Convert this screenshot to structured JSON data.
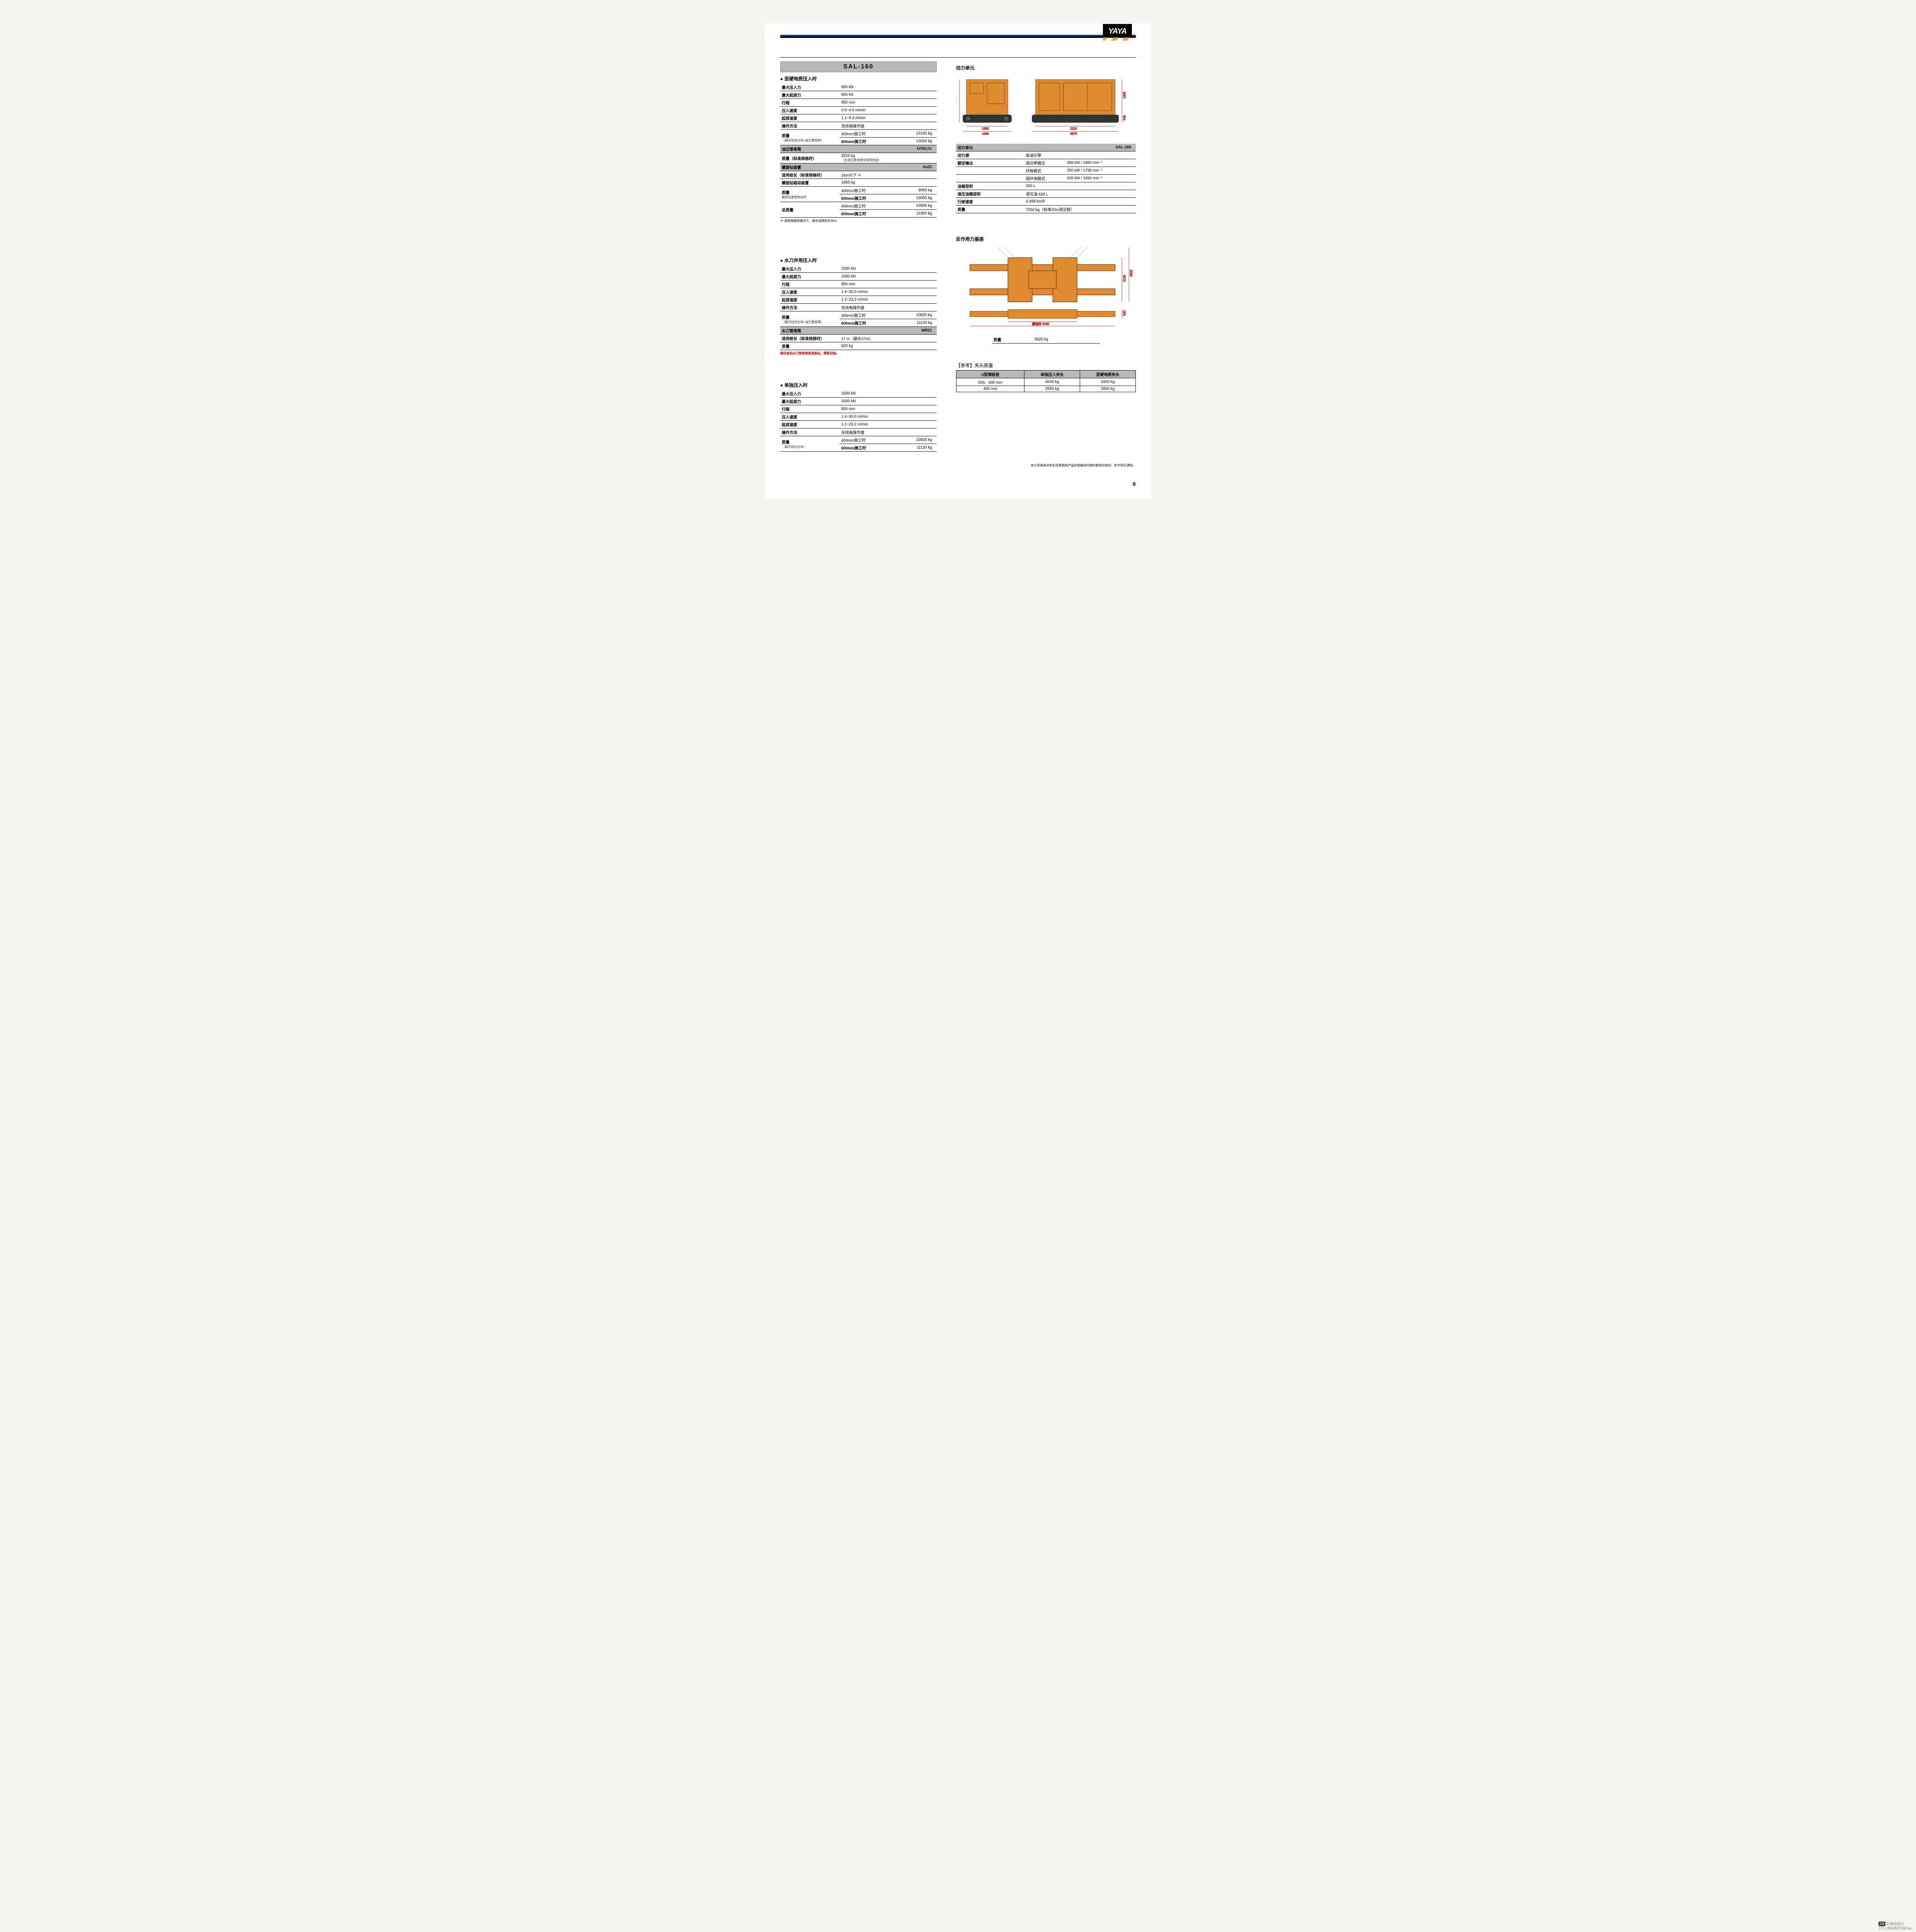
{
  "logo_text": "YAYA",
  "model": "SAL-160",
  "colors": {
    "machine_orange": "#e08a2e",
    "machine_dark": "#6b3f16",
    "dim_red": "#c02020",
    "gray_header": "#b8b8b8",
    "black": "#000000"
  },
  "sec1": {
    "title": "坚硬地质压入时",
    "rows": [
      [
        "最大压入力",
        "800 kN",
        ""
      ],
      [
        "最大起拔力",
        "900 kN",
        ""
      ],
      [
        "行程",
        "850 mm",
        ""
      ],
      [
        "压入速度",
        "0.5~4.5 m/min",
        ""
      ],
      [
        "起拔速度",
        "1.1~9.4 m/min",
        ""
      ],
      [
        "操作方法",
        "无线电操作盘",
        ""
      ]
    ],
    "mass_label": "质量",
    "mass_sub": "（静压桩机主体+油压管卷筒）",
    "mass_rows": [
      [
        "400mm施工时",
        "13160 kg"
      ],
      [
        "600mm施工时",
        "13660 kg"
      ]
    ],
    "gray1": [
      "油压管卷筒",
      "HTR17C"
    ],
    "std_label": "质量（标准规格时）",
    "std_val": "2810 kg",
    "std_sub": "（含液压管卷筒安装用支架）",
    "gray2": [
      "螺旋钻装置",
      "Au22"
    ],
    "auger_rows": [
      [
        "适用桩长（标准规格时）",
        "24m以下  ※",
        ""
      ],
      [
        "螺旋钻驱动装置",
        "1850 kg",
        ""
      ]
    ],
    "auger_mass_label": "质量",
    "auger_mass_sub": "螺旋钻套管和钻杆",
    "auger_mass_rows": [
      [
        "400mm施工时",
        "9050 kg"
      ],
      [
        "600mm施工时",
        "10050 kg"
      ]
    ],
    "total_label": "总质量",
    "total_rows": [
      [
        "400mm施工时",
        "10900 kg"
      ],
      [
        "600mm施工时",
        "11900 kg"
      ]
    ],
    "footnote": "※ 选购规格的情况下，最长适用桩长30m"
  },
  "sec2": {
    "title": "水刀并用压入时",
    "rows": [
      [
        "最大压入力",
        "1500 kN",
        ""
      ],
      [
        "最大起拔力",
        "1600 kN",
        ""
      ],
      [
        "行程",
        "850 mm",
        ""
      ],
      [
        "压入速度",
        "1.4~30.0 m/min",
        ""
      ],
      [
        "起拔速度",
        "1.1~23.2 m/min",
        ""
      ],
      [
        "操作方法",
        "无线电操作盘",
        ""
      ]
    ],
    "mass_label": "质量",
    "mass_sub": "（静压桩机主体+油压管卷筒）",
    "mass_rows": [
      [
        "400mm施工时",
        "10820 kg"
      ],
      [
        "600mm施工时",
        "11120 kg"
      ]
    ],
    "gray": [
      "水刀管卷筒",
      "WR21"
    ],
    "wj_rows": [
      [
        "适用桩长（标准规格时）",
        "17 m（最长27m）"
      ],
      [
        "质量",
        "820 kg"
      ]
    ],
    "footnote": "静压桩机水刀管卷筒是选购品，需要另购。"
  },
  "sec3": {
    "title": "单独压入时",
    "rows": [
      [
        "最大压入力",
        "1500 kN",
        ""
      ],
      [
        "最大起拔力",
        "1600 kN",
        ""
      ],
      [
        "行程",
        "850 mm",
        ""
      ],
      [
        "压入速度",
        "1.4~30.0 m/min",
        ""
      ],
      [
        "起拔速度",
        "1.1~23.2 m/min",
        ""
      ],
      [
        "操作方法",
        "无线电操作盘",
        ""
      ]
    ],
    "mass_label": "质量",
    "mass_sub": "（静压桩机主体）",
    "mass_rows": [
      [
        "400mm施工时",
        "10820 kg"
      ],
      [
        "600mm施工时",
        "11120 kg"
      ]
    ]
  },
  "power_unit": {
    "title": "动力单元",
    "dims": {
      "h_total": "2350",
      "h_body": "1805",
      "h_track": "545",
      "w_body": "1800",
      "w_total": "1960",
      "l_body": "2110",
      "l_total": "3975"
    },
    "table_header": [
      "动力单元",
      "SAL-160"
    ],
    "rows": [
      [
        "动力源",
        "",
        "柴油引擎"
      ],
      [
        "额定输出",
        "高功率模式",
        "258 kW / 1850 min⁻¹"
      ],
      [
        "",
        "环保模式",
        "250 kW / 1750 min⁻¹"
      ],
      [
        "",
        "超环保模式",
        "245 kW / 1650 min⁻¹"
      ],
      [
        "油箱容积",
        "",
        "650 L"
      ],
      [
        "液压油箱容积",
        "",
        "液压油 630 L"
      ],
      [
        "行驶速度",
        "",
        "0.468 km/h"
      ],
      [
        "质量",
        "",
        "7250 kg（标准20m液压管）"
      ]
    ]
  },
  "reaction_base": {
    "title": "反作用力基座",
    "dims": {
      "width_total": "6250",
      "width_trans": "搬运时 3440",
      "h1": "2120",
      "h_total": "4650",
      "h2": "530"
    },
    "mass_label": "质量",
    "mass_val": "2625 kg"
  },
  "chuck_table": {
    "title": "【参考】夹头质量",
    "headers": [
      "U型钢板桩",
      "单独压入夹头",
      "坚硬地质夹头"
    ],
    "rows": [
      [
        "500、600 mm",
        "4045 kg",
        "3400 kg"
      ],
      [
        "400 mm",
        "2550 kg",
        "2900 kg"
      ]
    ]
  },
  "disclaimer": "本公司具有对本机及其相关产品的规格进行随时更改的权利，恕不另行通知。",
  "page_number": "6",
  "watermark": {
    "badge": "CS",
    "name": "扫描全能王",
    "sub": "3 亿人都在用的扫描 App"
  }
}
